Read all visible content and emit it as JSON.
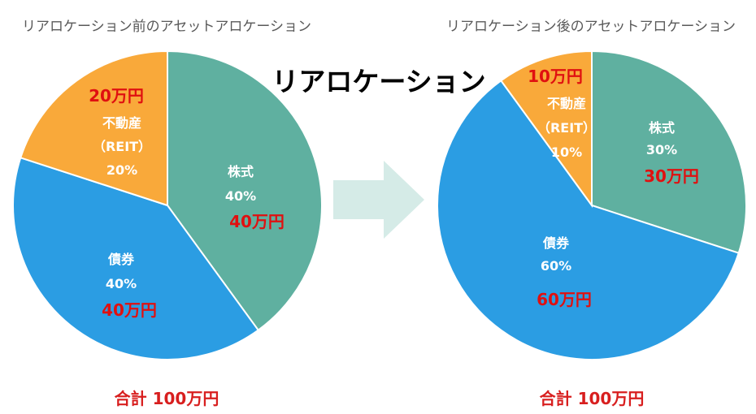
{
  "main_title": "リアロケーション",
  "colors": {
    "stocks": "#5fb0a0",
    "bonds": "#2b9de3",
    "reit": "#f9a93a",
    "amount": "#e01010",
    "arrow": "#d5ebe7"
  },
  "chart_data": [
    {
      "type": "pie",
      "title": "リアロケーション前のアセットアロケーション",
      "slices": [
        {
          "name": "株式",
          "percent_label": "40%",
          "amount_label": "40万円",
          "value": 40
        },
        {
          "name": "債券",
          "percent_label": "40%",
          "amount_label": "40万円",
          "value": 40
        },
        {
          "name": "不動産",
          "name2": "（REIT）",
          "percent_label": "20%",
          "amount_label": "20万円",
          "value": 20
        }
      ],
      "total_label": "合計 100万円"
    },
    {
      "type": "pie",
      "title": "リアロケーション後のアセットアロケーション",
      "slices": [
        {
          "name": "株式",
          "percent_label": "30%",
          "amount_label": "30万円",
          "value": 30
        },
        {
          "name": "債券",
          "percent_label": "60%",
          "amount_label": "60万円",
          "value": 60
        },
        {
          "name": "不動産",
          "name2": "（REIT）",
          "percent_label": "10%",
          "amount_label": "10万円",
          "value": 10
        }
      ],
      "total_label": "合計 100万円"
    }
  ]
}
